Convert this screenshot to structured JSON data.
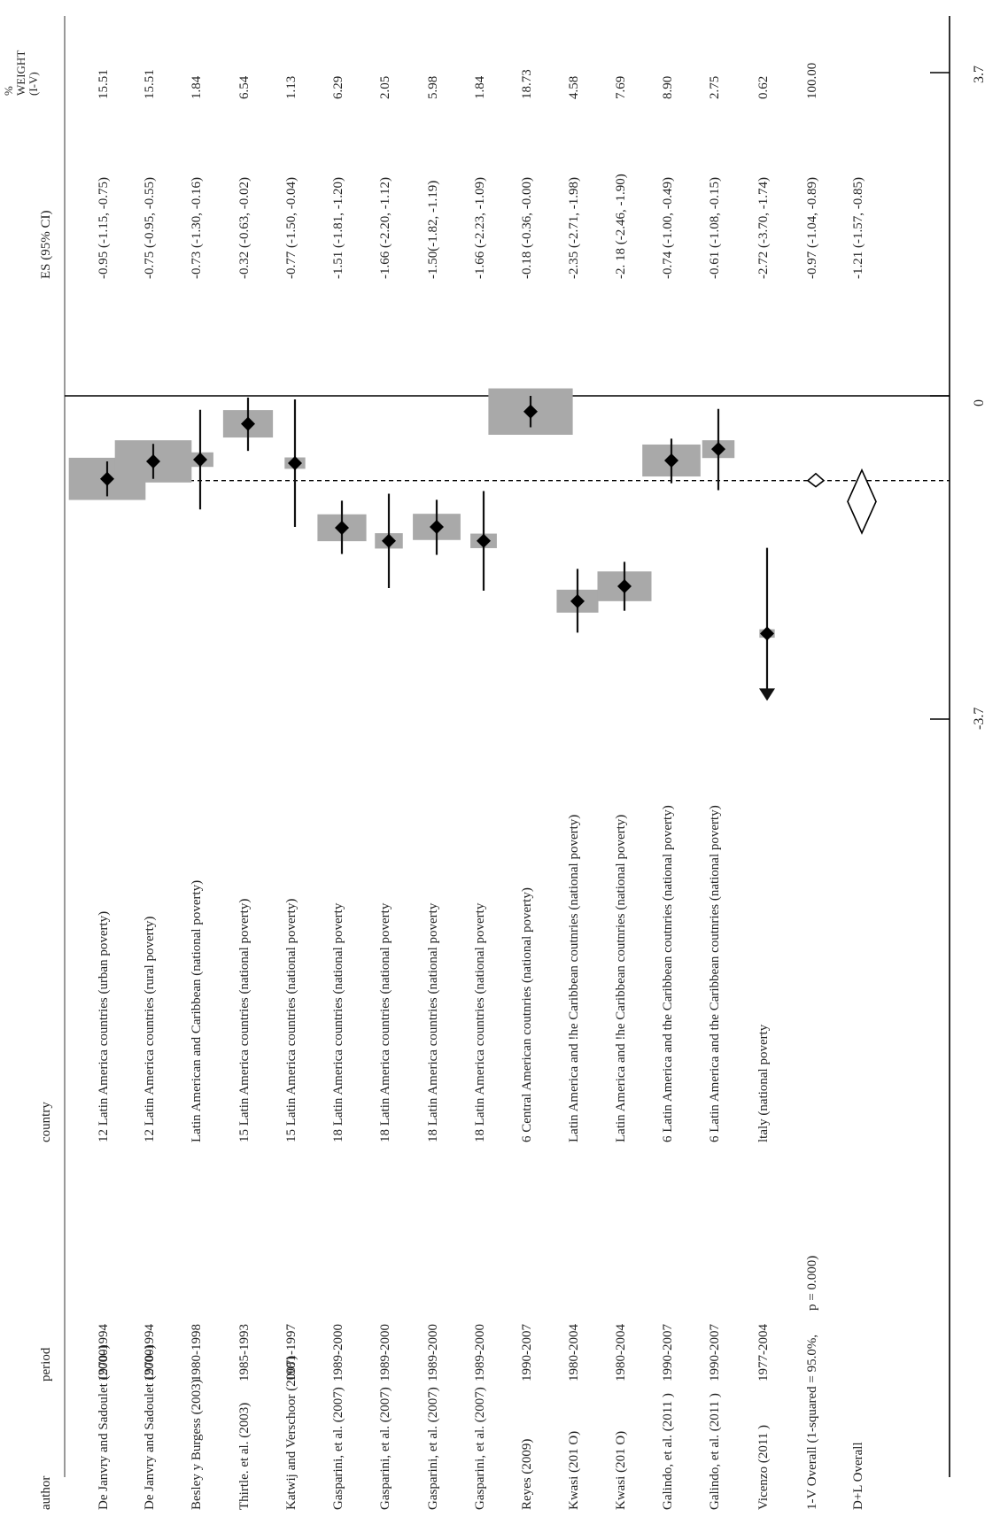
{
  "chart_data": {
    "type": "forest",
    "title": "",
    "headers": {
      "author": "author",
      "period": "period",
      "country": "country",
      "es": "ES (95% CI)",
      "weight": [
        "%",
        "WEIGHT",
        "(I-V)"
      ]
    },
    "rows": [
      {
        "author": "De Janvry and Sadoulet (2000)",
        "period": "1970-1994",
        "country": "12 Latin America countries (urban poverty)",
        "es": -0.95,
        "lo": -1.15,
        "hi": -0.75,
        "es_text": "-0.95 (-1.15, -0.75)",
        "weight": "15.51"
      },
      {
        "author": "De Janvry and Sadoulet (2000)",
        "period": "1970-1994",
        "country": "12 Latin America countries (rural poverty)",
        "es": -0.75,
        "lo": -0.95,
        "hi": -0.55,
        "es_text": "-0.75 (-0.95, -0.55)",
        "weight": "15.51"
      },
      {
        "author": "Besley y Burgess (2003)",
        "period": "1980-1998",
        "country": "Latin American and Caribbean (national poverty)",
        "es": -0.73,
        "lo": -1.3,
        "hi": -0.16,
        "es_text": "-0.73 (-1.30, -0.16)",
        "weight": "1.84"
      },
      {
        "author": "Thirtle. et al. (2003)",
        "period": "1985-1993",
        "country": "15 Latin America countries (national poverty)",
        "es": -0.32,
        "lo": -0.63,
        "hi": -0.02,
        "es_text": "-0.32 (-0.63, -0.02)",
        "weight": "6.54"
      },
      {
        "author": "Katwij and Verschoor (2007)",
        "period": "1981-1997",
        "country": "15 Latin America countries (national poverty)",
        "es": -0.77,
        "lo": -1.5,
        "hi": -0.04,
        "es_text": "-0.77 (-1.50, -0.04)",
        "weight": "1.13"
      },
      {
        "author": "Gasparini, et al. (2007)",
        "period": "1989-2000",
        "country": "18 Latin America countries (national poverty",
        "es": -1.51,
        "lo": -1.81,
        "hi": -1.2,
        "es_text": "-1.51 (-1.81, -1.20)",
        "weight": "6.29"
      },
      {
        "author": "Gasparini, et al. (2007)",
        "period": "1989-2000",
        "country": "18 Latin America countries (national poverty",
        "es": -1.66,
        "lo": -2.2,
        "hi": -1.12,
        "es_text": "-1.66 (-2.20, -1.12)",
        "weight": "2.05"
      },
      {
        "author": "Gasparini, et al. (2007)",
        "period": "1989-2000",
        "country": "18 Latin America countries (national poverty",
        "es": -1.5,
        "lo": -1.82,
        "hi": -1.19,
        "es_text": "-1.50(-1.82, -1.19)",
        "weight": "5.98"
      },
      {
        "author": "Gasparini, et al. (2007)",
        "period": "1989-2000",
        "country": "18 Latin America countries (national poverty",
        "es": -1.66,
        "lo": -2.23,
        "hi": -1.09,
        "es_text": "-1.66 (-2.23, -1.09)",
        "weight": "1.84"
      },
      {
        "author": "Reyes (2009)",
        "period": "1990-2007",
        "country": "6 Central American coutnries (national poverty)",
        "es": -0.18,
        "lo": -0.36,
        "hi": -0.0,
        "es_text": "-0.18 (-0.36, -0.00)",
        "weight": "18.73"
      },
      {
        "author": "Kwasi (201 O)",
        "period": "1980-2004",
        "country": "Latin America and !he Caribbean coutnries (national poverty)",
        "es": -2.35,
        "lo": -2.71,
        "hi": -1.98,
        "es_text": "-2.35 (-2.71, -1.98)",
        "weight": "4.58"
      },
      {
        "author": "Kwasi (201 O)",
        "period": "1980-2004",
        "country": "Latin America and !he Caribbean coutnries (national poverty)",
        "es": -2.18,
        "lo": -2.46,
        "hi": -1.9,
        "es_text": "-2. 18 (-2.46, -1.90)",
        "weight": "7.69"
      },
      {
        "author": "Galindo, et al. (2011 )",
        "period": "1990-2007",
        "country": "6 Latin America and the Caribbean coutnries (national poverty)",
        "es": -0.74,
        "lo": -1.0,
        "hi": -0.49,
        "es_text": "-0.74 (-1.00, -0.49)",
        "weight": "8.90"
      },
      {
        "author": "Galindo, et al. (2011 )",
        "period": "1990-2007",
        "country": "6 Latin America and the Caribbean coutnries (national poverty)",
        "es": -0.61,
        "lo": -1.08,
        "hi": -0.15,
        "es_text": "-0.61 (-1.08, -0.15)",
        "weight": "2.75"
      },
      {
        "author": "Vicenzo (2011 )",
        "period": "1977-2004",
        "country": "ltaly (national poverty",
        "es": -2.72,
        "lo": -3.7,
        "hi": -1.74,
        "es_text": "-2.72 (-3.70, -1.74)",
        "weight": "0.62"
      }
    ],
    "overall": [
      {
        "label": "1-V Overall (1-squared = 95.0%,",
        "label2": "p = 0.000)",
        "es": -0.97,
        "lo": -1.04,
        "hi": -0.89,
        "es_text": "-0.97 (-1.04, -0.89)",
        "weight": "100.00"
      },
      {
        "label": "D+L Overall",
        "label2": "",
        "es": -1.21,
        "lo": -1.57,
        "hi": -0.85,
        "es_text": "-1.21 (-1.57, -0.85)",
        "weight": ""
      }
    ],
    "axis": {
      "range": [
        -3.7,
        3.7
      ],
      "ticks": [
        -3.7,
        0,
        3.7
      ],
      "tick_labels": [
        "-3.7",
        "0",
        "3.7"
      ]
    },
    "colors": {
      "box": "#a9a9a9",
      "line": "#111111"
    }
  }
}
